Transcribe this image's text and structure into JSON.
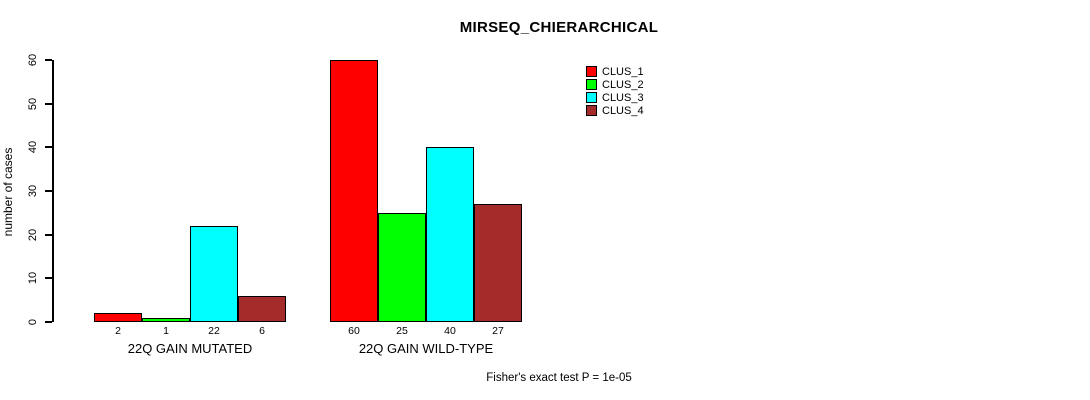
{
  "chart_data": {
    "type": "bar",
    "title": "MIRSEQ_CHIERARCHICAL",
    "ylabel": "number of cases",
    "xlabel": "",
    "ylim": [
      0,
      60
    ],
    "yticks": [
      0,
      10,
      20,
      30,
      40,
      50,
      60
    ],
    "grid": false,
    "legend_position": "top-right",
    "series": [
      {
        "name": "CLUS_1",
        "color": "#FF0000"
      },
      {
        "name": "CLUS_2",
        "color": "#00FF00"
      },
      {
        "name": "CLUS_3",
        "color": "#00FFFF"
      },
      {
        "name": "CLUS_4",
        "color": "#A52A2A"
      }
    ],
    "groups": [
      {
        "label": "22Q GAIN MUTATED",
        "values": [
          2,
          1,
          22,
          6
        ]
      },
      {
        "label": "22Q GAIN WILD-TYPE",
        "values": [
          60,
          25,
          40,
          27
        ]
      }
    ],
    "bar_value_labels_shown": true,
    "annotation": "Fisher's exact test P = 1e-05",
    "colors": {
      "background": "#FFFFFF",
      "axis": "#000000",
      "text": "#000000"
    }
  }
}
